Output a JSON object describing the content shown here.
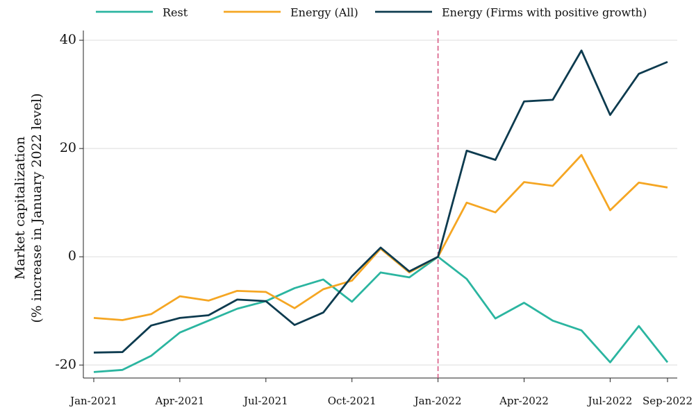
{
  "chart_data": {
    "type": "line",
    "ylabel": [
      "Market capitalization",
      "(% increase in January 2022 level)"
    ],
    "categories": [
      "Jan-2021",
      null,
      null,
      "Apr-2021",
      null,
      null,
      "Jul-2021",
      null,
      null,
      "Oct-2021",
      null,
      null,
      "Jan-2022",
      null,
      null,
      "Apr-2022",
      null,
      null,
      "Jul-2022",
      null,
      "Sep-2022"
    ],
    "series": [
      {
        "name": "Rest",
        "color": "#2bb5a0",
        "values": [
          -21.3,
          -20.9,
          -18.3,
          -14.0,
          -11.8,
          -9.6,
          -8.2,
          -5.8,
          -4.2,
          -8.3,
          -2.9,
          -3.8,
          0,
          -4.1,
          -11.4,
          -8.5,
          -11.8,
          -13.6,
          -19.5,
          -12.8,
          -19.5
        ]
      },
      {
        "name": "Energy (All)",
        "color": "#f5a623",
        "values": [
          -11.3,
          -11.7,
          -10.6,
          -7.3,
          -8.1,
          -6.3,
          -6.5,
          -9.5,
          -6.0,
          -4.4,
          1.5,
          -2.9,
          0,
          10.0,
          8.2,
          13.8,
          13.1,
          18.8,
          8.6,
          13.7,
          12.8
        ]
      },
      {
        "name": "Energy (Firms with positive growth)",
        "color": "#0d3b4f",
        "values": [
          -17.7,
          -17.6,
          -12.7,
          -11.3,
          -10.8,
          -7.9,
          -8.2,
          -12.6,
          -10.3,
          -3.6,
          1.7,
          -2.7,
          0,
          19.6,
          17.9,
          28.7,
          29.0,
          38.1,
          26.2,
          33.8,
          36.0
        ]
      }
    ],
    "ylim": [
      -22.4,
      41.8
    ],
    "yticks": [
      -20,
      0,
      20,
      40
    ],
    "grid": true,
    "vline": {
      "category": 12,
      "color": "#d6517d",
      "style": "dashed"
    },
    "legend": "top"
  }
}
